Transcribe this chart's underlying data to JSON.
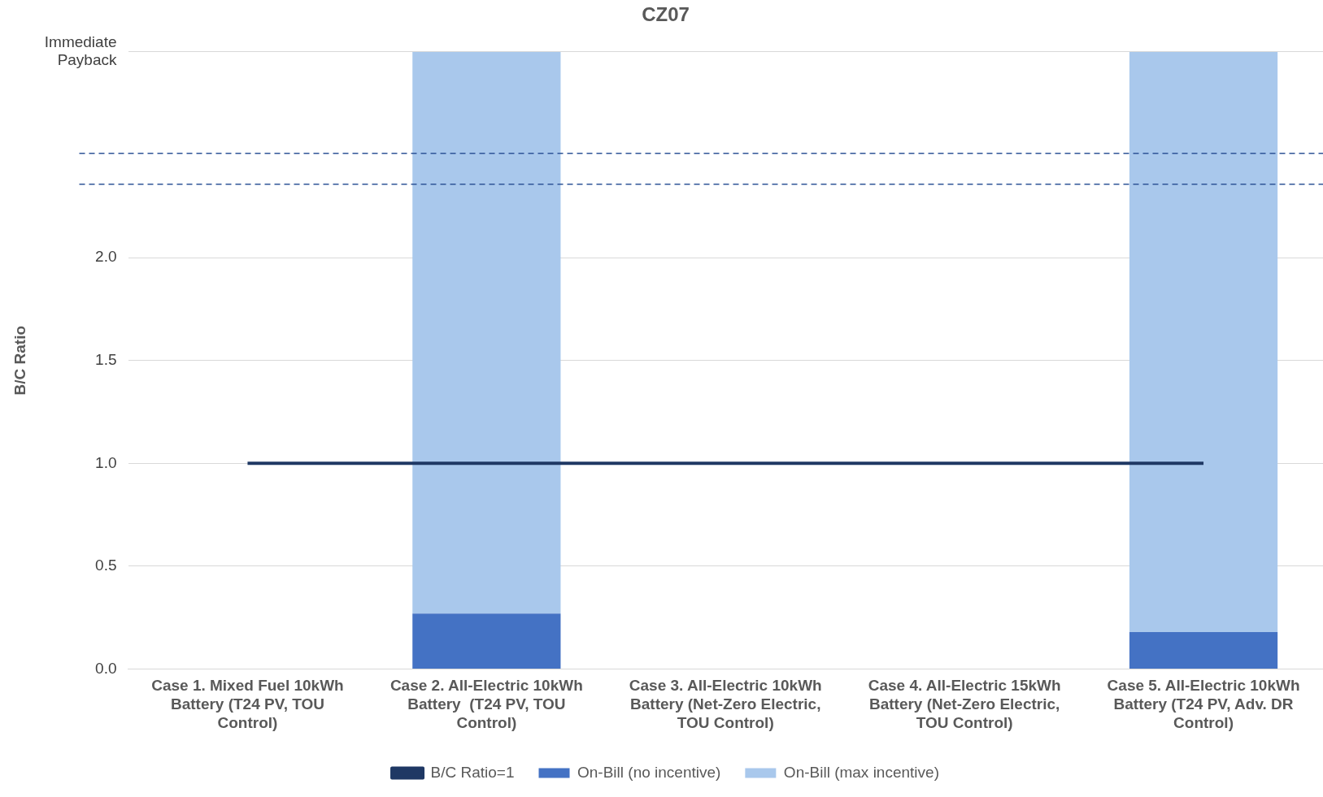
{
  "chart_data": {
    "type": "bar",
    "title": "CZ07",
    "ylabel": "B/C Ratio",
    "categories": [
      "Case 1. Mixed Fuel 10kWh Battery (T24 PV, TOU Control)",
      "Case 2. All-Electric 10kWh Battery  (T24 PV, TOU Control)",
      "Case 3. All-Electric 10kWh Battery (Net-Zero Electric, TOU Control)",
      "Case 4. All-Electric 15kWh Battery (Net-Zero Electric, TOU Control)",
      "Case 5. All-Electric 10kWh Battery (T24 PV, Adv. DR Control)"
    ],
    "series": [
      {
        "name": "On-Bill (no incentive)",
        "color": "#4472c4",
        "values": [
          0,
          0.27,
          0,
          0,
          0.18
        ]
      },
      {
        "name": "On-Bill (max incentive)",
        "color": "#a9c8ec",
        "values": [
          0,
          2.73,
          0,
          0,
          2.82
        ]
      },
      {
        "name": "B/C Ratio=1",
        "type": "line",
        "color": "#1f3864",
        "marker": "none",
        "values": [
          1,
          1,
          1,
          1,
          1
        ]
      }
    ],
    "stacked": true,
    "ylim": [
      0,
      3
    ],
    "yticks": [
      {
        "value": 0,
        "label": "0.0"
      },
      {
        "value": 0.5,
        "label": "0.5"
      },
      {
        "value": 1,
        "label": "1.0"
      },
      {
        "value": 1.5,
        "label": "1.5"
      },
      {
        "value": 2,
        "label": "2.0"
      },
      {
        "value": 3,
        "label": "Immediate Payback"
      }
    ],
    "ref_lines": [
      {
        "axis": "y",
        "value": 2.507,
        "color": "#2f5597",
        "line_style": "dashed"
      },
      {
        "axis": "y",
        "value": 2.357,
        "color": "#2f5597",
        "line_style": "dashed"
      }
    ],
    "grid": "y",
    "legend": "bottom"
  }
}
